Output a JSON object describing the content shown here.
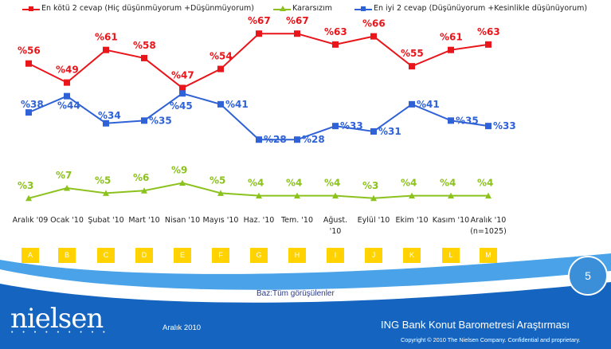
{
  "chart_data": {
    "type": "line",
    "categories": [
      "Aralık '09",
      "Ocak '10",
      "Şubat '10",
      "Mart '10",
      "Nisan '10",
      "Mayıs '10",
      "Haz. '10",
      "Tem. '10",
      "Ağust. '10",
      "Eylül '10",
      "Ekim '10",
      "Kasım '10",
      "Aralık '10 (n=1025)"
    ],
    "category_letters": [
      "A",
      "B",
      "C",
      "D",
      "E",
      "F",
      "G",
      "H",
      "I",
      "J",
      "K",
      "L",
      "M"
    ],
    "value_prefix": "%",
    "series": [
      {
        "name": "En kötü 2 cevap (Hiç düşünmüyorum +Düşünmüyorum)",
        "color": "#e8151b",
        "values": [
          56,
          49,
          61,
          58,
          47,
          54,
          67,
          67,
          63,
          66,
          55,
          61,
          63
        ]
      },
      {
        "name": "Kararsızım",
        "color": "#8cc21e",
        "values": [
          3,
          7,
          5,
          6,
          9,
          5,
          4,
          4,
          4,
          3,
          4,
          4,
          4
        ]
      },
      {
        "name": "En iyi 2 cevap (Düşünüyorum +Kesinlikle düşünüyorum)",
        "color": "#2f62d6",
        "values": [
          38,
          44,
          34,
          35,
          45,
          41,
          28,
          28,
          33,
          31,
          41,
          35,
          33
        ]
      }
    ]
  },
  "footer": {
    "base_note": "Baz:Tüm görüşülenler",
    "logo": "nielsen",
    "logo_dots": "• • • • • • • • •",
    "date": "Aralık 2010",
    "report_title": "ING Bank Konut Barometresi Araştırması",
    "copyright": "Copyright © 2010 The Nielsen Company. Confidential and proprietary.",
    "page_number": "5"
  },
  "colors": {
    "footer_blue": "#1565c0",
    "footer_light": "#4aa3e8",
    "letter_box": "#ffd200"
  }
}
